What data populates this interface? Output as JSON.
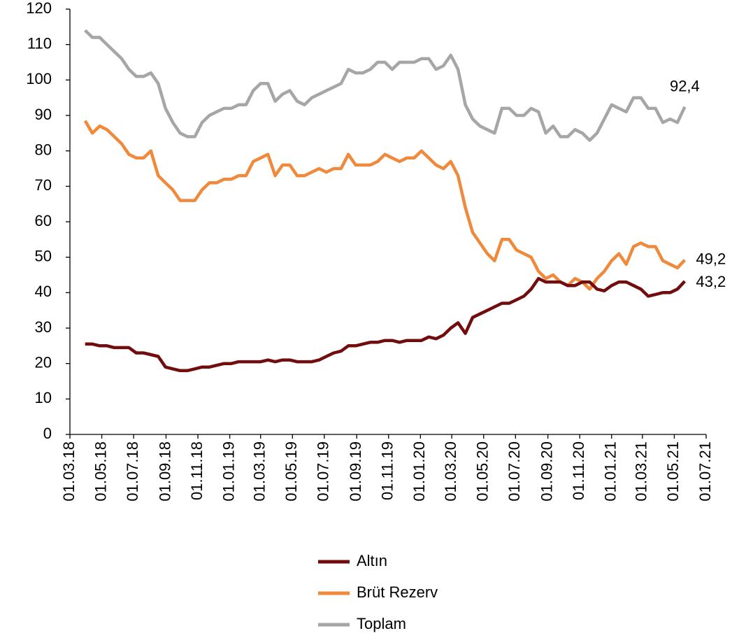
{
  "chart_data": {
    "type": "line",
    "x": [
      "2018-03-30",
      "2018-04-13",
      "2018-04-27",
      "2018-05-11",
      "2018-05-25",
      "2018-06-08",
      "2018-06-22",
      "2018-07-06",
      "2018-07-20",
      "2018-08-03",
      "2018-08-17",
      "2018-08-31",
      "2018-09-14",
      "2018-09-28",
      "2018-10-12",
      "2018-10-26",
      "2018-11-09",
      "2018-11-23",
      "2018-12-07",
      "2018-12-21",
      "2019-01-04",
      "2019-01-18",
      "2019-02-01",
      "2019-02-15",
      "2019-03-01",
      "2019-03-15",
      "2019-03-29",
      "2019-04-12",
      "2019-04-26",
      "2019-05-10",
      "2019-05-24",
      "2019-06-07",
      "2019-06-21",
      "2019-07-05",
      "2019-07-19",
      "2019-08-02",
      "2019-08-16",
      "2019-08-30",
      "2019-09-13",
      "2019-09-27",
      "2019-10-11",
      "2019-10-25",
      "2019-11-08",
      "2019-11-22",
      "2019-12-06",
      "2019-12-20",
      "2020-01-03",
      "2020-01-17",
      "2020-01-31",
      "2020-02-14",
      "2020-02-28",
      "2020-03-13",
      "2020-03-27",
      "2020-04-10",
      "2020-04-24",
      "2020-05-08",
      "2020-05-22",
      "2020-06-05",
      "2020-06-19",
      "2020-07-03",
      "2020-07-17",
      "2020-07-31",
      "2020-08-14",
      "2020-08-28",
      "2020-09-11",
      "2020-09-25",
      "2020-10-09",
      "2020-10-23",
      "2020-11-06",
      "2020-11-20",
      "2020-12-04",
      "2020-12-18",
      "2021-01-01",
      "2021-01-15",
      "2021-01-29",
      "2021-02-12",
      "2021-02-26",
      "2021-03-12",
      "2021-03-26",
      "2021-04-09",
      "2021-04-23",
      "2021-05-07",
      "2021-05-21"
    ],
    "series": [
      {
        "name": "Altın",
        "color": "#720d0d",
        "values": [
          25.5,
          25.5,
          25,
          25,
          24.5,
          24.5,
          24.5,
          23,
          23,
          22.5,
          22,
          19,
          18.5,
          18,
          18,
          18.5,
          19,
          19,
          19.5,
          20,
          20,
          20.5,
          20.5,
          20.5,
          20.5,
          21,
          20.5,
          21,
          21,
          20.5,
          20.5,
          20.5,
          21,
          22,
          23,
          23.5,
          25,
          25,
          25.5,
          26,
          26,
          26.5,
          26.5,
          26,
          26.5,
          26.5,
          26.5,
          27.5,
          27,
          28,
          30,
          31.5,
          28.5,
          33,
          34,
          35,
          36,
          37,
          37,
          38,
          39,
          41,
          44,
          43,
          43,
          43,
          42,
          42,
          43,
          43,
          41,
          40.5,
          42,
          43,
          43,
          42,
          41,
          39,
          39.5,
          40,
          40,
          41,
          43.2
        ],
        "value_labels": [
          null,
          null,
          null,
          null,
          null,
          null,
          null,
          null,
          null,
          null,
          null,
          null,
          null,
          null,
          null,
          null,
          null,
          null,
          null,
          null,
          null,
          null,
          null,
          null,
          null,
          null,
          null,
          null,
          null,
          null,
          null,
          null,
          null,
          null,
          null,
          null,
          null,
          null,
          null,
          null,
          null,
          null,
          null,
          null,
          null,
          null,
          null,
          null,
          null,
          null,
          null,
          null,
          null,
          null,
          null,
          null,
          null,
          null,
          null,
          null,
          null,
          null,
          null,
          null,
          null,
          null,
          null,
          null,
          null,
          null,
          null,
          null,
          null,
          null,
          null,
          null,
          null,
          null,
          null,
          null,
          null,
          null,
          "43,2"
        ]
      },
      {
        "name": "Brüt Rezerv",
        "color": "#ef8a3c",
        "values": [
          88.5,
          85,
          87,
          86,
          84,
          82,
          79,
          78,
          78,
          80,
          73,
          71,
          69,
          66,
          66,
          66,
          69,
          71,
          71,
          72,
          72,
          73,
          73,
          77,
          78,
          79,
          73,
          76,
          76,
          73,
          73,
          74,
          75,
          74,
          75,
          75,
          79,
          76,
          76,
          76,
          77,
          79,
          78,
          77,
          78,
          78,
          80,
          78,
          76,
          75,
          77,
          73,
          64,
          57,
          54,
          51,
          49,
          55,
          55,
          52,
          51,
          50,
          46,
          44,
          45,
          43,
          42,
          44,
          43,
          41,
          44,
          46,
          49,
          51,
          48,
          53,
          54,
          53,
          53,
          49,
          48,
          47,
          49.2
        ],
        "value_labels": [
          null,
          null,
          null,
          null,
          null,
          null,
          null,
          null,
          null,
          null,
          null,
          null,
          null,
          null,
          null,
          null,
          null,
          null,
          null,
          null,
          null,
          null,
          null,
          null,
          null,
          null,
          null,
          null,
          null,
          null,
          null,
          null,
          null,
          null,
          null,
          null,
          null,
          null,
          null,
          null,
          null,
          null,
          null,
          null,
          null,
          null,
          null,
          null,
          null,
          null,
          null,
          null,
          null,
          null,
          null,
          null,
          null,
          null,
          null,
          null,
          null,
          null,
          null,
          null,
          null,
          null,
          null,
          null,
          null,
          null,
          null,
          null,
          null,
          null,
          null,
          null,
          null,
          null,
          null,
          null,
          null,
          null,
          "49,2"
        ]
      },
      {
        "name": "Toplam",
        "color": "#a6a6a6",
        "values": [
          114,
          112,
          112,
          110,
          108,
          106,
          103,
          101,
          101,
          102,
          99,
          92,
          88,
          85,
          84,
          84,
          88,
          90,
          91,
          92,
          92,
          93,
          93,
          97,
          99,
          99,
          94,
          96,
          97,
          94,
          93,
          95,
          96,
          97,
          98,
          99,
          103,
          102,
          102,
          103,
          105,
          105,
          103,
          105,
          105,
          105,
          106,
          106,
          103,
          104,
          107,
          103,
          93,
          89,
          87,
          86,
          85,
          92,
          92,
          90,
          90,
          92,
          91,
          85,
          87,
          84,
          84,
          86,
          85,
          83,
          85,
          89,
          93,
          92,
          91,
          95,
          95,
          92,
          92,
          88,
          89,
          88,
          92.4
        ],
        "value_labels": [
          null,
          null,
          null,
          null,
          null,
          null,
          null,
          null,
          null,
          null,
          null,
          null,
          null,
          null,
          null,
          null,
          null,
          null,
          null,
          null,
          null,
          null,
          null,
          null,
          null,
          null,
          null,
          null,
          null,
          null,
          null,
          null,
          null,
          null,
          null,
          null,
          null,
          null,
          null,
          null,
          null,
          null,
          null,
          null,
          null,
          null,
          null,
          null,
          null,
          null,
          null,
          null,
          null,
          null,
          null,
          null,
          null,
          null,
          null,
          null,
          null,
          null,
          null,
          null,
          null,
          null,
          null,
          null,
          null,
          null,
          null,
          null,
          null,
          null,
          null,
          null,
          null,
          null,
          null,
          null,
          null,
          null,
          "92,4"
        ]
      }
    ],
    "xlim": [
      "2018-03-01",
      "2021-07-01"
    ],
    "xticks": [
      {
        "value": "2018-03-01",
        "label": "01.03.18"
      },
      {
        "value": "2018-05-01",
        "label": "01.05.18"
      },
      {
        "value": "2018-07-01",
        "label": "01.07.18"
      },
      {
        "value": "2018-09-01",
        "label": "01.09.18"
      },
      {
        "value": "2018-11-01",
        "label": "01.11.18"
      },
      {
        "value": "2019-01-01",
        "label": "01.01.19"
      },
      {
        "value": "2019-03-01",
        "label": "01.03.19"
      },
      {
        "value": "2019-05-01",
        "label": "01.05.19"
      },
      {
        "value": "2019-07-01",
        "label": "01.07.19"
      },
      {
        "value": "2019-09-01",
        "label": "01.09.19"
      },
      {
        "value": "2019-11-01",
        "label": "01.11.19"
      },
      {
        "value": "2020-01-01",
        "label": "01.01.20"
      },
      {
        "value": "2020-03-01",
        "label": "01.03.20"
      },
      {
        "value": "2020-05-01",
        "label": "01.05.20"
      },
      {
        "value": "2020-07-01",
        "label": "01.07.20"
      },
      {
        "value": "2020-09-01",
        "label": "01.09.20"
      },
      {
        "value": "2020-11-01",
        "label": "01.11.20"
      },
      {
        "value": "2021-01-01",
        "label": "01.01.21"
      },
      {
        "value": "2021-03-01",
        "label": "01.03.21"
      },
      {
        "value": "2021-05-01",
        "label": "01.05.21"
      },
      {
        "value": "2021-07-01",
        "label": "01.07.21"
      }
    ],
    "ylim": [
      0,
      120
    ],
    "yticks": [
      0,
      10,
      20,
      30,
      40,
      50,
      60,
      70,
      80,
      90,
      100,
      110,
      120
    ],
    "grid": false,
    "legend": "bottom"
  }
}
